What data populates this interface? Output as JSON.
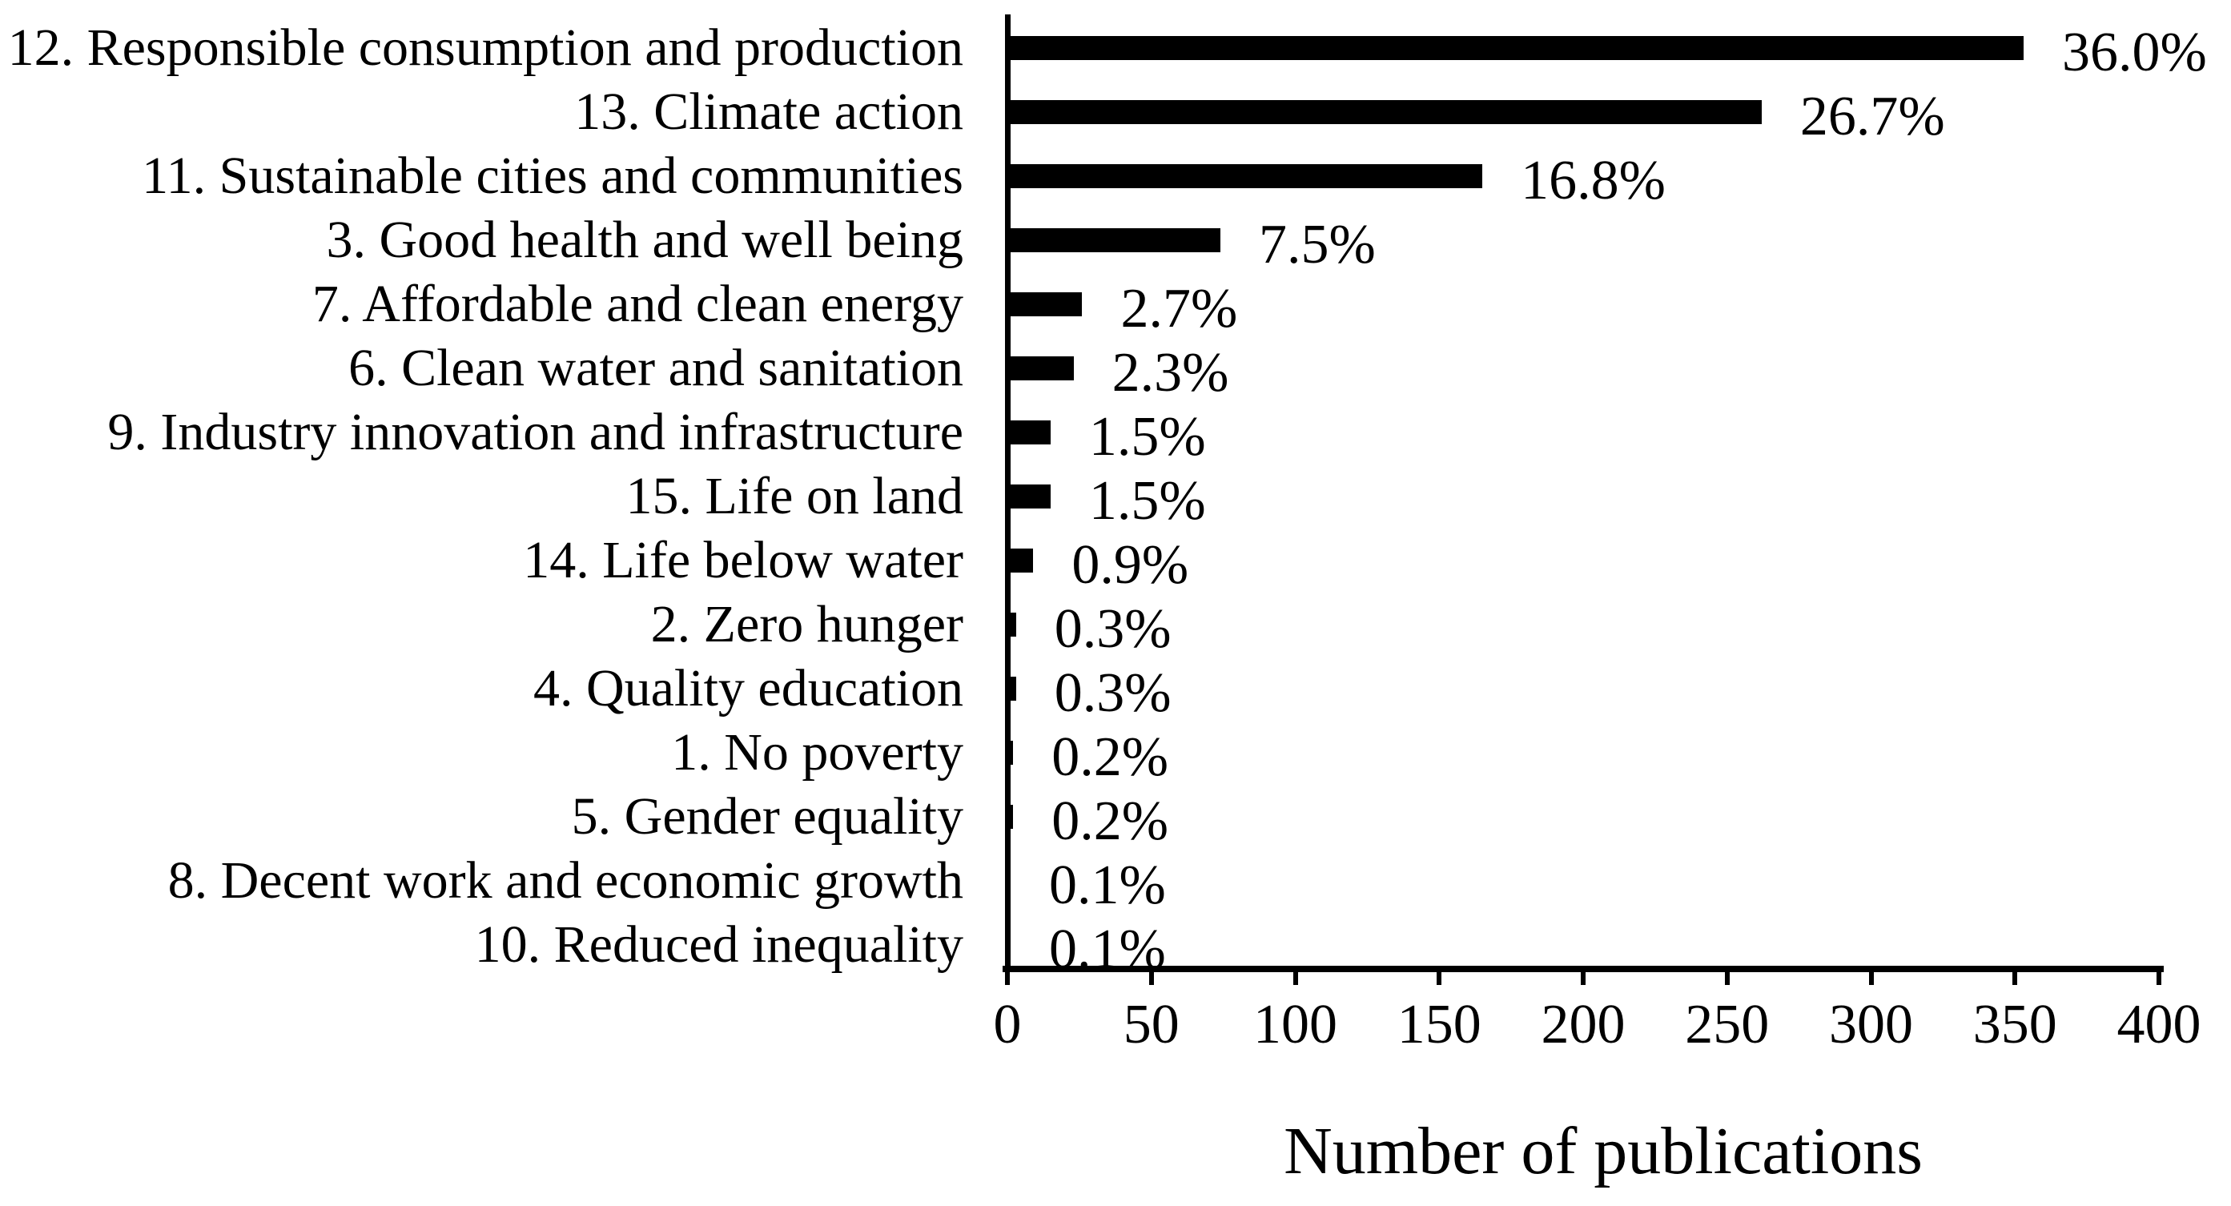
{
  "chart_data": {
    "type": "bar",
    "orientation": "horizontal",
    "title": "",
    "xlabel": "Number of publications",
    "ylabel": "",
    "xlim": [
      0,
      400
    ],
    "xticks": [
      0,
      50,
      100,
      150,
      200,
      250,
      300,
      350,
      400
    ],
    "grid": false,
    "legend": false,
    "bar_color": "#000000",
    "axis_color": "#000000",
    "background_color": "#ffffff",
    "categories": [
      "12. Responsible consumption and production",
      "13. Climate action",
      "11. Sustainable cities and communities",
      "3. Good health and well being",
      "7. Affordable and clean energy",
      "6. Clean water and sanitation",
      "9. Industry innovation and infrastructure",
      "15. Life on land",
      "14. Life below water",
      "2. Zero hunger",
      "4. Quality education",
      "1. No poverty",
      "5. Gender equality",
      "8. Decent work and economic growth",
      "10. Reduced inequality"
    ],
    "values": [
      353,
      262,
      165,
      74,
      26,
      23,
      15,
      15,
      9,
      3,
      3,
      2,
      2,
      1,
      1
    ],
    "percent_labels": [
      "36.0%",
      "26.7%",
      "16.8%",
      "7.5%",
      "2.7%",
      "2.3%",
      "1.5%",
      "1.5%",
      "0.9%",
      "0.3%",
      "0.3%",
      "0.2%",
      "0.2%",
      "0.1%",
      "0.1%"
    ]
  }
}
